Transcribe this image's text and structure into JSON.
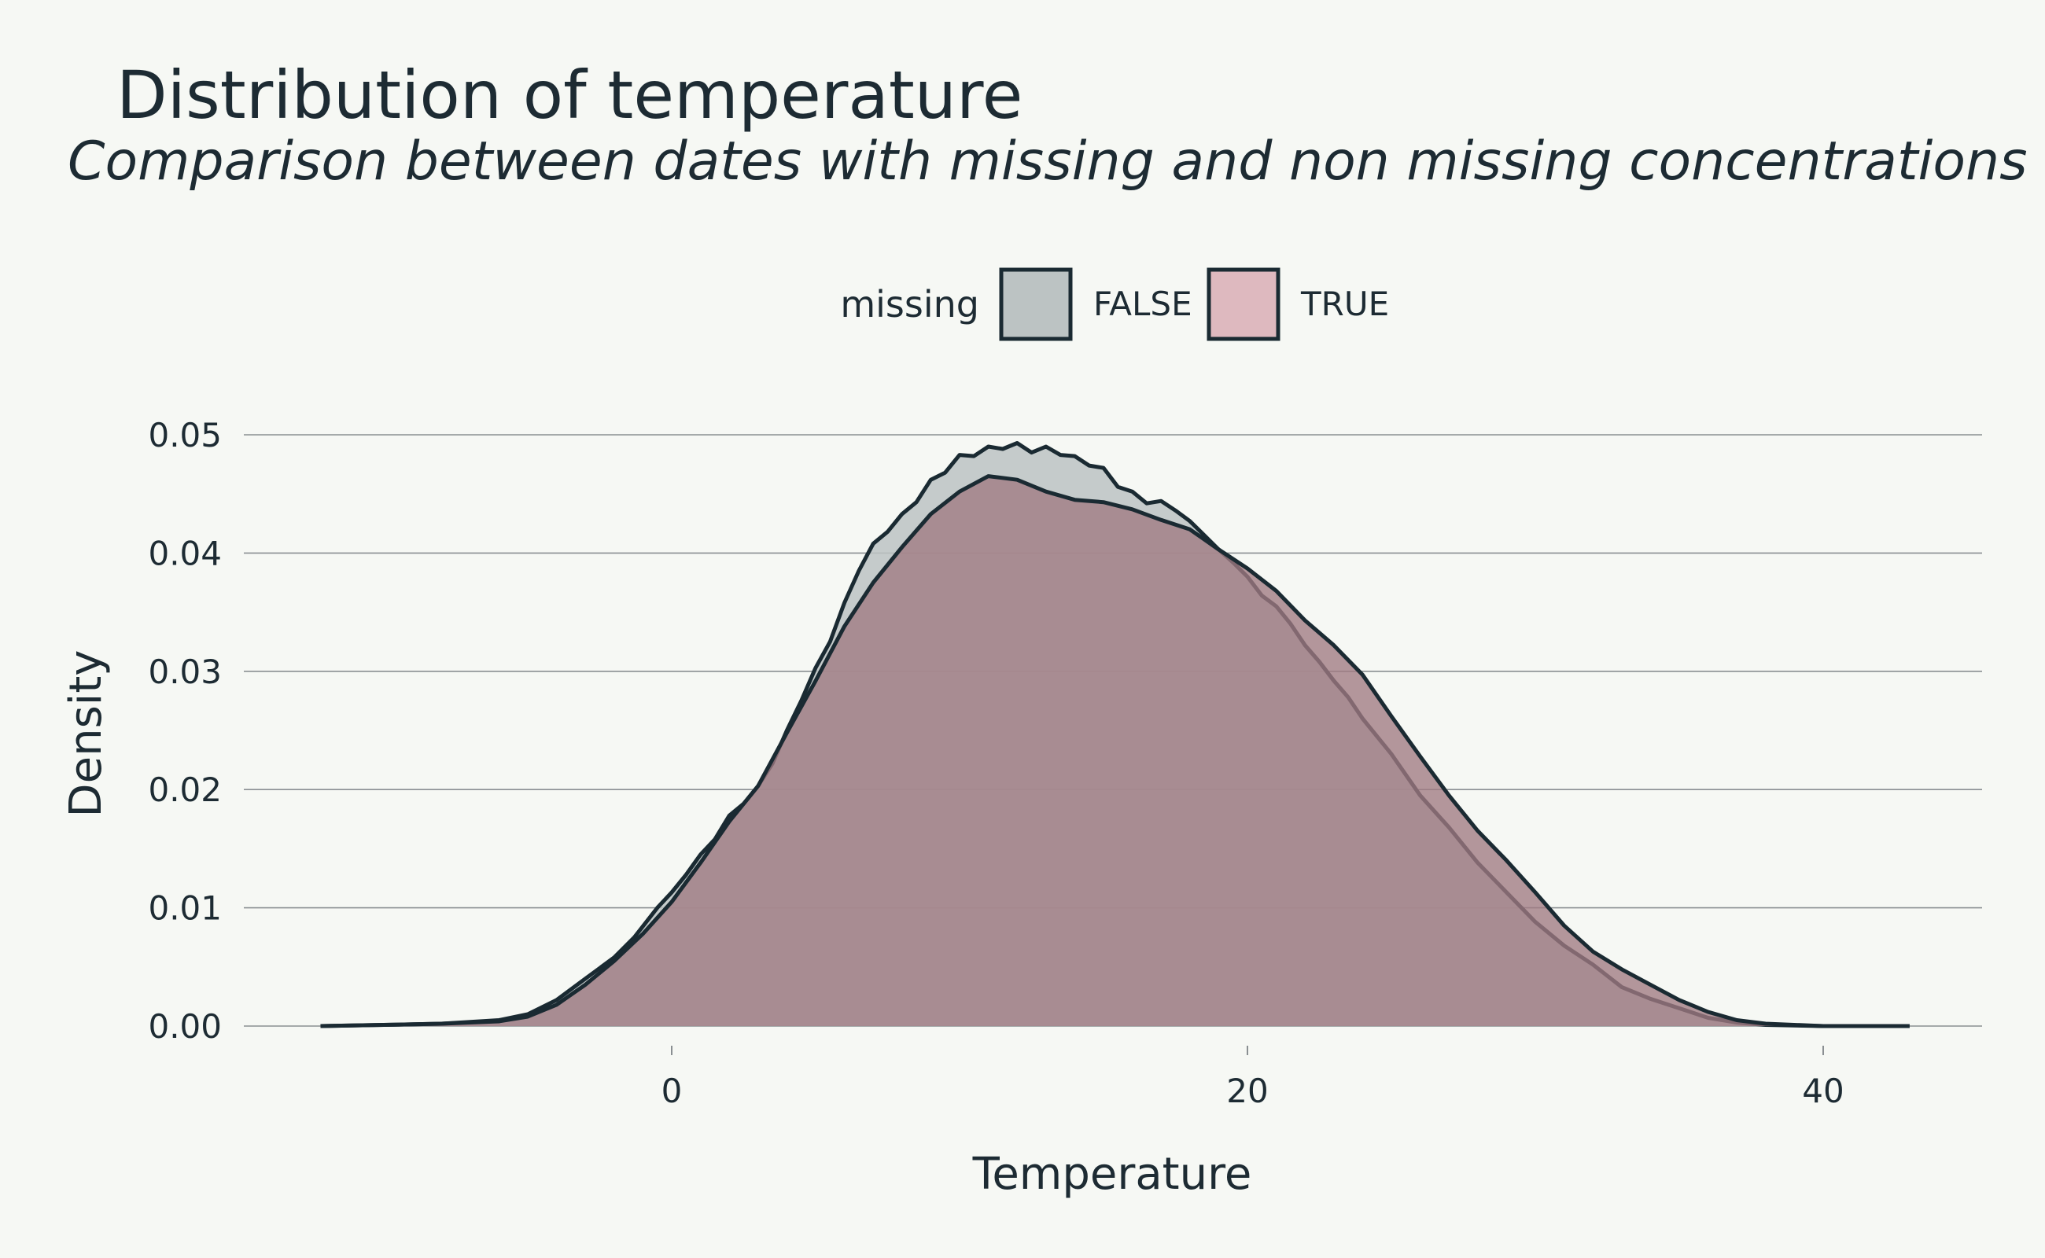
{
  "chart_data": {
    "type": "area",
    "title": "Distribution of temperature",
    "subtitle": "Comparison between dates with missing and non missing concentrations",
    "xlabel": "Temperature",
    "ylabel": "Density",
    "xlim": [
      -16,
      47
    ],
    "ylim": [
      0,
      0.05
    ],
    "x_ticks": [
      0,
      20,
      40
    ],
    "x_tick_labels": [
      "0",
      "20",
      "40"
    ],
    "y_ticks": [
      0,
      0.01,
      0.02,
      0.03,
      0.04,
      0.05
    ],
    "y_tick_labels": [
      "0.00",
      "0.01",
      "0.02",
      "0.03",
      "0.04",
      "0.05"
    ],
    "grid": "horizontal",
    "legend": {
      "title": "missing",
      "position": "top",
      "entries": [
        {
          "label": "FALSE",
          "color": "#bcc3c3"
        },
        {
          "label": "TRUE",
          "color": "#deb9bf"
        }
      ]
    },
    "series": [
      {
        "name": "FALSE",
        "fill": "#bcc3c3",
        "fill_opacity": 0.85,
        "x": [
          -12.2,
          -10,
          -8,
          -6,
          -5,
          -4,
          -3,
          -2,
          -1.3,
          -0.5,
          0,
          0.5,
          1,
          1.5,
          2,
          2.5,
          3,
          3.5,
          4,
          4.5,
          5,
          5.5,
          6,
          6.5,
          7,
          7.5,
          8,
          8.5,
          9,
          9.5,
          10,
          10.5,
          11,
          11.5,
          12,
          12.5,
          13,
          13.5,
          14,
          14.5,
          15,
          15.5,
          16,
          16.5,
          17,
          17.5,
          18,
          18.5,
          19,
          19.5,
          20,
          20.5,
          21,
          21.5,
          22,
          22.5,
          23,
          23.5,
          24,
          25,
          26,
          27,
          28,
          29,
          30,
          31,
          32,
          33,
          34,
          35,
          36,
          37,
          38,
          40,
          43
        ],
        "y": [
          0,
          0.0001,
          0.0002,
          0.0005,
          0.001,
          0.0022,
          0.004,
          0.0058,
          0.0075,
          0.01,
          0.0113,
          0.0128,
          0.0145,
          0.0158,
          0.0178,
          0.0188,
          0.0203,
          0.0222,
          0.025,
          0.0275,
          0.0303,
          0.0325,
          0.0358,
          0.0385,
          0.0408,
          0.0418,
          0.0433,
          0.0443,
          0.0462,
          0.0468,
          0.0483,
          0.0482,
          0.049,
          0.0488,
          0.0493,
          0.0485,
          0.049,
          0.0483,
          0.0482,
          0.0474,
          0.0472,
          0.0456,
          0.0452,
          0.0442,
          0.0444,
          0.0436,
          0.0427,
          0.0415,
          0.0403,
          0.0392,
          0.038,
          0.0364,
          0.0355,
          0.034,
          0.0322,
          0.0308,
          0.0292,
          0.0278,
          0.026,
          0.023,
          0.0195,
          0.0168,
          0.0138,
          0.0113,
          0.0088,
          0.0068,
          0.0052,
          0.0033,
          0.0023,
          0.0015,
          0.0007,
          0.0003,
          0.0001,
          0,
          0
        ]
      },
      {
        "name": "TRUE",
        "fill": "#a07a82",
        "fill_opacity": 0.78,
        "x": [
          -12.2,
          -10,
          -8,
          -6,
          -5,
          -4,
          -3,
          -2,
          -1,
          0,
          1,
          2,
          3,
          4,
          5,
          6,
          7,
          8,
          9,
          10,
          11,
          12,
          13,
          14,
          15,
          16,
          17,
          18,
          19,
          20,
          21,
          22,
          23,
          24,
          25,
          26,
          27,
          28,
          29,
          30,
          31,
          32,
          33,
          34,
          35,
          36,
          37,
          38,
          40,
          43
        ],
        "y": [
          0,
          0.0001,
          0.0002,
          0.0004,
          0.0008,
          0.0018,
          0.0035,
          0.0055,
          0.0078,
          0.0105,
          0.0138,
          0.0173,
          0.0203,
          0.0248,
          0.0292,
          0.0338,
          0.0375,
          0.0405,
          0.0433,
          0.0452,
          0.0465,
          0.0462,
          0.0452,
          0.0445,
          0.0443,
          0.0437,
          0.0428,
          0.042,
          0.0403,
          0.0387,
          0.0368,
          0.0343,
          0.0322,
          0.0297,
          0.0262,
          0.0228,
          0.0195,
          0.0165,
          0.014,
          0.0113,
          0.0085,
          0.0063,
          0.0048,
          0.0035,
          0.0022,
          0.0012,
          0.0005,
          0.0002,
          0,
          0
        ]
      }
    ]
  }
}
